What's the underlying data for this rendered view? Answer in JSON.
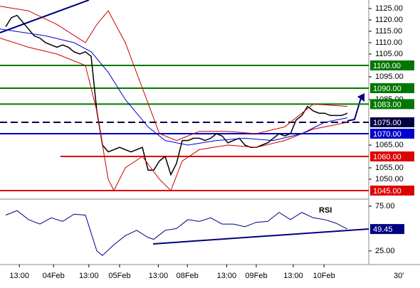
{
  "chart_data": {
    "type": "line",
    "xlim": [
      0,
      65
    ],
    "xticks": [
      {
        "value": 3.4,
        "label": "13:00"
      },
      {
        "value": 9.4,
        "label": "04Feb"
      },
      {
        "value": 15.6,
        "label": "13:00"
      },
      {
        "value": 21,
        "label": "05Feb"
      },
      {
        "value": 27.8,
        "label": "13:00"
      },
      {
        "value": 32.9,
        "label": "08Feb"
      },
      {
        "value": 39.8,
        "label": "13:00"
      },
      {
        "value": 45,
        "label": "09Feb"
      },
      {
        "value": 51.5,
        "label": "13:00"
      },
      {
        "value": 56.9,
        "label": "10Feb"
      }
    ],
    "timeframe": "30'",
    "ylim": [
      1041.25,
      1128.75
    ],
    "yticks": [
      {
        "value": 1125,
        "label": "1125.00"
      },
      {
        "value": 1120,
        "label": "1120.00"
      },
      {
        "value": 1115,
        "label": "1115.00"
      },
      {
        "value": 1110,
        "label": "1110.00"
      },
      {
        "value": 1105,
        "label": "1105.00"
      },
      {
        "value": 1095,
        "label": "1095.00"
      },
      {
        "value": 1085,
        "label": "1085.00"
      },
      {
        "value": 1065,
        "label": "1065.00"
      },
      {
        "value": 1055,
        "label": "1055.00"
      },
      {
        "value": 1050,
        "label": "1050.00"
      }
    ],
    "series": [
      {
        "color": "#000000",
        "x": [
          1,
          2,
          3,
          4,
          5,
          6,
          7,
          8,
          9,
          10,
          11,
          12,
          13,
          14,
          15,
          16,
          17,
          18,
          19,
          20,
          21,
          22,
          23,
          24,
          25,
          26,
          27,
          28,
          29,
          30,
          31,
          32,
          33,
          34,
          35,
          36,
          37,
          38,
          39,
          40,
          41,
          42,
          43,
          44,
          45,
          46,
          47,
          48,
          49,
          50,
          51,
          52,
          53,
          54,
          55,
          56,
          57,
          58,
          59,
          60,
          61
        ],
        "values": [
          1117,
          1121,
          1122,
          1119,
          1116,
          1113,
          1112,
          1110,
          1109,
          1108,
          1109,
          1108,
          1106,
          1105,
          1106,
          1104,
          1080,
          1065,
          1062,
          1063,
          1064,
          1063,
          1062,
          1063,
          1064,
          1054,
          1054,
          1058,
          1060,
          1052,
          1057,
          1067,
          1067,
          1068,
          1068,
          1067,
          1068,
          1070,
          1069,
          1066,
          1067,
          1068,
          1065,
          1064,
          1064,
          1065,
          1066,
          1068,
          1070,
          1069,
          1070,
          1076,
          1078,
          1082,
          1080,
          1079,
          1079,
          1078,
          1078,
          1078,
          1079
        ]
      },
      {
        "color": "#cc0000",
        "x": [
          0,
          5,
          10,
          15,
          17,
          19,
          22,
          25,
          28,
          31,
          35,
          40,
          45,
          50,
          55,
          61
        ],
        "values": [
          1126,
          1124,
          1118,
          1110,
          1118,
          1124,
          1110,
          1090,
          1070,
          1067,
          1071,
          1071,
          1070,
          1073,
          1083,
          1082
        ]
      },
      {
        "color": "#cc0000",
        "x": [
          0,
          5,
          10,
          15,
          17,
          19,
          20,
          22,
          25,
          28,
          30,
          32,
          35,
          40,
          45,
          50,
          55,
          61
        ],
        "values": [
          1112,
          1108,
          1105,
          1100,
          1080,
          1050,
          1045,
          1055,
          1060,
          1050,
          1045,
          1058,
          1063,
          1065,
          1064,
          1067,
          1072,
          1075
        ]
      },
      {
        "color": "#0000cc",
        "x": [
          0,
          8,
          13,
          16,
          19,
          22,
          26,
          29,
          33,
          38,
          43,
          48,
          53,
          57,
          61
        ],
        "values": [
          1116,
          1113,
          1110,
          1106,
          1097,
          1085,
          1073,
          1067,
          1065,
          1067,
          1068,
          1067,
          1070,
          1075,
          1077
        ]
      }
    ],
    "levels": [
      {
        "value": 1100,
        "label": "1100.00",
        "color": "#007700",
        "start": 0
      },
      {
        "value": 1090,
        "label": "1090.00",
        "color": "#007700",
        "start": 0
      },
      {
        "value": 1083,
        "label": "1083.00",
        "color": "#007700",
        "start": 0
      },
      {
        "value": 1075,
        "label": "1075.00",
        "color": "#000044",
        "start": 0
      },
      {
        "value": 1070,
        "label": "1070.00",
        "color": "#0000cc",
        "start": 0
      },
      {
        "value": 1060,
        "label": "1060.00",
        "color": "#dd0000",
        "start": 10.6
      },
      {
        "value": 1045,
        "label": "1045.00",
        "color": "#dd0000",
        "start": 0
      }
    ],
    "rsi": {
      "label": "RSI",
      "color": "#000080",
      "ylim": [
        13,
        80.5
      ],
      "yticks": [
        {
          "value": 75,
          "label": "75.00"
        },
        {
          "value": 25,
          "label": "25.00"
        }
      ],
      "x": [
        1,
        3,
        5,
        7,
        9,
        11,
        13,
        15,
        17,
        18,
        20,
        22,
        24,
        26,
        27,
        29,
        31,
        33,
        35,
        37,
        39,
        41,
        43,
        45,
        47,
        49,
        51,
        53,
        55,
        57,
        59,
        61
      ],
      "values": [
        65,
        70,
        60,
        55,
        62,
        58,
        66,
        65,
        25,
        20,
        32,
        42,
        48,
        40,
        38,
        48,
        50,
        60,
        58,
        62,
        55,
        55,
        52,
        57,
        58,
        68,
        60,
        68,
        62,
        60,
        56,
        49.45
      ],
      "current": {
        "value": 49.45,
        "label": "49.45"
      }
    }
  }
}
